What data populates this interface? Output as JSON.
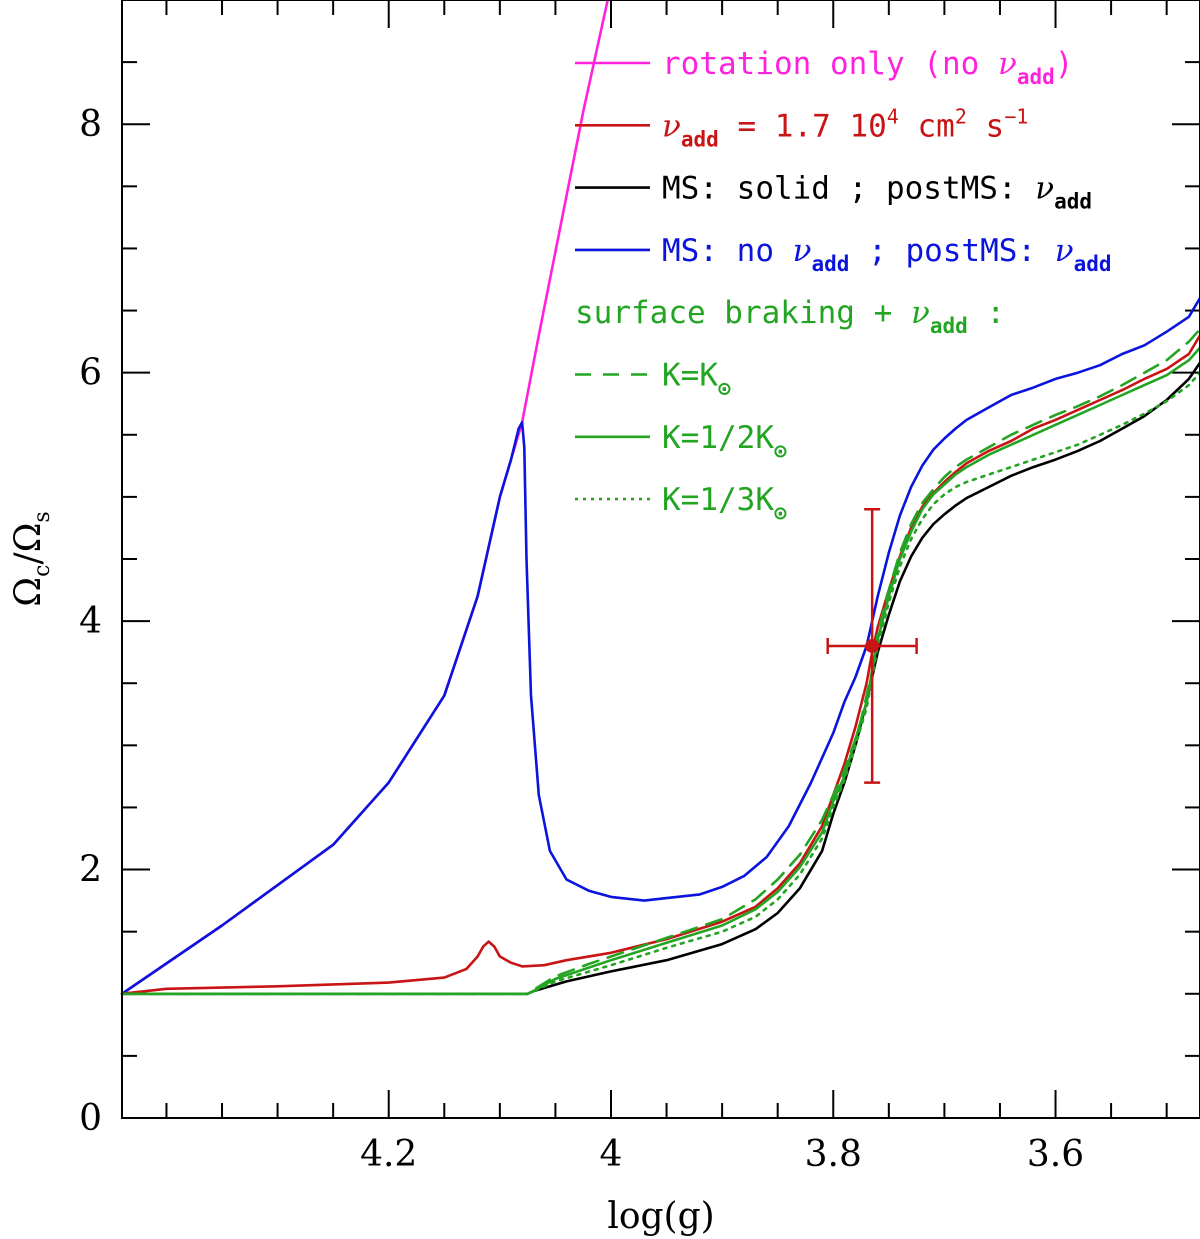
{
  "chart_data": {
    "type": "line",
    "xlabel": "log(g)",
    "ylabel_main": "Ω",
    "ylabel_sub_num": "c",
    "ylabel_slash": "/",
    "ylabel_sub_den": "s",
    "xlim": [
      4.44,
      3.47
    ],
    "ylim": [
      0,
      9
    ],
    "x_ticks": [
      4.2,
      4.0,
      3.8,
      3.6
    ],
    "x_tick_labels": [
      "4.2",
      "4",
      "3.8",
      "3.6"
    ],
    "x_minor_step": 0.05,
    "y_ticks": [
      0,
      2,
      4,
      6,
      8
    ],
    "y_tick_labels": [
      "0",
      "2",
      "4",
      "6",
      "8"
    ],
    "y_minor_step": 0.5,
    "colors": {
      "magenta": "#ff22dd",
      "red": "#c81414",
      "black": "#000000",
      "blue": "#0a14dc",
      "green": "#23a523"
    },
    "legend": [
      {
        "id": "rotation",
        "color": "magenta",
        "dash": "solid",
        "text_parts": [
          {
            "t": "rotation only (no "
          },
          {
            "t": "ν",
            "g": 1
          },
          {
            "t": "add",
            "sub": 1
          },
          {
            "t": ")"
          }
        ]
      },
      {
        "id": "nuadd",
        "color": "red",
        "dash": "solid",
        "text_parts": [
          {
            "t": "ν",
            "g": 1
          },
          {
            "t": "add",
            "sub": 1
          },
          {
            "t": " = 1.7 10"
          },
          {
            "t": "4",
            "sup": 1
          },
          {
            "t": " cm"
          },
          {
            "t": "2",
            "sup": 1
          },
          {
            "t": " s"
          },
          {
            "t": "−1",
            "sup": 1
          }
        ]
      },
      {
        "id": "ms-solid",
        "color": "black",
        "dash": "solid",
        "text_parts": [
          {
            "t": "MS: solid ; postMS: "
          },
          {
            "t": "ν",
            "g": 1
          },
          {
            "t": "add",
            "sub": 1
          }
        ]
      },
      {
        "id": "ms-no",
        "color": "blue",
        "dash": "solid",
        "text_parts": [
          {
            "t": "MS: no "
          },
          {
            "t": "ν",
            "g": 1
          },
          {
            "t": "add",
            "sub": 1
          },
          {
            "t": " ; postMS: "
          },
          {
            "t": "ν",
            "g": 1
          },
          {
            "t": "add",
            "sub": 1
          }
        ]
      },
      {
        "id": "braking-header",
        "color": "green",
        "dash": "none",
        "text_parts": [
          {
            "t": "surface braking + "
          },
          {
            "t": "ν",
            "g": 1
          },
          {
            "t": "add",
            "sub": 1
          },
          {
            "t": " :"
          }
        ]
      },
      {
        "id": "k1",
        "color": "green",
        "dash": "dashed",
        "text_parts": [
          {
            "t": "K=K"
          },
          {
            "t": "⊙",
            "sub": 1
          }
        ]
      },
      {
        "id": "k2",
        "color": "green",
        "dash": "solid",
        "text_parts": [
          {
            "t": "K=1/2K"
          },
          {
            "t": "⊙",
            "sub": 1
          }
        ]
      },
      {
        "id": "k3",
        "color": "green",
        "dash": "dotted",
        "text_parts": [
          {
            "t": "K=1/3K"
          },
          {
            "t": "⊙",
            "sub": 1
          }
        ]
      }
    ],
    "observation": {
      "x": 3.765,
      "y": 3.8,
      "xerr": 0.04,
      "y_low": 2.7,
      "y_high": 4.9,
      "color": "red"
    },
    "series": [
      {
        "name": "rotation only (no ν_add)",
        "color": "magenta",
        "dash": "solid",
        "x": [
          4.44,
          4.35,
          4.25,
          4.2,
          4.15,
          4.12,
          4.1,
          4.09,
          4.08,
          4.065,
          4.045,
          4.025,
          4.003
        ],
        "y": [
          1.0,
          1.55,
          2.2,
          2.7,
          3.4,
          4.2,
          5.0,
          5.3,
          5.6,
          6.3,
          7.2,
          8.1,
          9.0
        ]
      },
      {
        "name": "MS: no ν_add ; postMS: ν_add",
        "color": "blue",
        "dash": "solid",
        "x": [
          4.44,
          4.35,
          4.25,
          4.2,
          4.15,
          4.12,
          4.1,
          4.09,
          4.083,
          4.08,
          4.078,
          4.076,
          4.072,
          4.065,
          4.055,
          4.04,
          4.02,
          4.0,
          3.97,
          3.95,
          3.92,
          3.9,
          3.88,
          3.86,
          3.84,
          3.82,
          3.8,
          3.79,
          3.78,
          3.77,
          3.765,
          3.76,
          3.75,
          3.74,
          3.73,
          3.72,
          3.71,
          3.7,
          3.69,
          3.68,
          3.66,
          3.64,
          3.62,
          3.6,
          3.58,
          3.56,
          3.54,
          3.52,
          3.5,
          3.48,
          3.47
        ],
        "y": [
          1.0,
          1.55,
          2.2,
          2.7,
          3.4,
          4.2,
          5.0,
          5.3,
          5.55,
          5.6,
          5.4,
          4.5,
          3.4,
          2.6,
          2.15,
          1.92,
          1.83,
          1.78,
          1.75,
          1.77,
          1.8,
          1.86,
          1.95,
          2.1,
          2.35,
          2.7,
          3.1,
          3.35,
          3.55,
          3.8,
          4.0,
          4.2,
          4.55,
          4.85,
          5.08,
          5.25,
          5.38,
          5.47,
          5.55,
          5.62,
          5.72,
          5.82,
          5.88,
          5.95,
          6.0,
          6.06,
          6.15,
          6.22,
          6.33,
          6.45,
          6.6
        ]
      },
      {
        "name": "ν_add = 1.7 10^4 cm^2 s^-1",
        "color": "red",
        "dash": "solid",
        "x": [
          4.44,
          4.4,
          4.3,
          4.2,
          4.15,
          4.13,
          4.12,
          4.115,
          4.11,
          4.105,
          4.1,
          4.09,
          4.08,
          4.06,
          4.04,
          4.0,
          3.95,
          3.9,
          3.87,
          3.85,
          3.83,
          3.81,
          3.8,
          3.79,
          3.78,
          3.77,
          3.765,
          3.76,
          3.75,
          3.74,
          3.73,
          3.72,
          3.71,
          3.7,
          3.69,
          3.68,
          3.66,
          3.64,
          3.62,
          3.6,
          3.58,
          3.56,
          3.54,
          3.52,
          3.5,
          3.48,
          3.47
        ],
        "y": [
          1.0,
          1.04,
          1.06,
          1.09,
          1.13,
          1.2,
          1.3,
          1.38,
          1.42,
          1.38,
          1.3,
          1.25,
          1.22,
          1.23,
          1.27,
          1.33,
          1.44,
          1.58,
          1.7,
          1.85,
          2.05,
          2.35,
          2.6,
          2.85,
          3.15,
          3.5,
          3.75,
          3.95,
          4.25,
          4.52,
          4.75,
          4.92,
          5.03,
          5.12,
          5.2,
          5.27,
          5.37,
          5.45,
          5.55,
          5.62,
          5.7,
          5.78,
          5.86,
          5.95,
          6.03,
          6.15,
          6.3
        ]
      },
      {
        "name": "MS: solid ; postMS: ν_add",
        "color": "black",
        "dash": "solid",
        "x": [
          4.44,
          4.2,
          4.1,
          4.075,
          4.07,
          4.04,
          4.0,
          3.95,
          3.9,
          3.87,
          3.85,
          3.83,
          3.81,
          3.8,
          3.79,
          3.78,
          3.77,
          3.765,
          3.76,
          3.75,
          3.74,
          3.73,
          3.72,
          3.71,
          3.7,
          3.69,
          3.68,
          3.66,
          3.64,
          3.62,
          3.6,
          3.58,
          3.56,
          3.54,
          3.52,
          3.5,
          3.48,
          3.47
        ],
        "y": [
          1.0,
          1.0,
          1.0,
          1.0,
          1.02,
          1.1,
          1.18,
          1.27,
          1.4,
          1.52,
          1.65,
          1.85,
          2.15,
          2.45,
          2.7,
          3.0,
          3.35,
          3.55,
          3.75,
          4.05,
          4.32,
          4.52,
          4.67,
          4.78,
          4.86,
          4.93,
          4.99,
          5.08,
          5.17,
          5.24,
          5.3,
          5.37,
          5.45,
          5.55,
          5.65,
          5.78,
          5.95,
          6.08
        ]
      },
      {
        "name": "K=K⊙",
        "color": "green",
        "dash": "dashed",
        "x": [
          4.44,
          4.2,
          4.1,
          4.075,
          4.07,
          4.05,
          4.02,
          4.0,
          3.95,
          3.9,
          3.87,
          3.85,
          3.83,
          3.81,
          3.8,
          3.79,
          3.78,
          3.775,
          3.77,
          3.765,
          3.76,
          3.75,
          3.74,
          3.73,
          3.72,
          3.71,
          3.7,
          3.69,
          3.68,
          3.66,
          3.64,
          3.62,
          3.6,
          3.58,
          3.56,
          3.54,
          3.52,
          3.5,
          3.48,
          3.47
        ],
        "y": [
          1.0,
          1.0,
          1.0,
          1.0,
          1.03,
          1.14,
          1.24,
          1.3,
          1.45,
          1.6,
          1.76,
          1.92,
          2.12,
          2.4,
          2.6,
          2.8,
          3.05,
          3.2,
          3.4,
          3.6,
          3.9,
          4.25,
          4.55,
          4.78,
          4.95,
          5.06,
          5.16,
          5.24,
          5.3,
          5.4,
          5.5,
          5.58,
          5.66,
          5.73,
          5.81,
          5.9,
          6.0,
          6.1,
          6.25,
          6.35
        ]
      },
      {
        "name": "K=1/2K⊙",
        "color": "green",
        "dash": "solid",
        "x": [
          4.44,
          4.2,
          4.1,
          4.075,
          4.07,
          4.05,
          4.0,
          3.95,
          3.9,
          3.87,
          3.85,
          3.83,
          3.81,
          3.8,
          3.79,
          3.78,
          3.77,
          3.765,
          3.76,
          3.75,
          3.74,
          3.73,
          3.72,
          3.71,
          3.7,
          3.69,
          3.68,
          3.66,
          3.64,
          3.62,
          3.6,
          3.58,
          3.56,
          3.54,
          3.52,
          3.5,
          3.48,
          3.47
        ],
        "y": [
          1.0,
          1.0,
          1.0,
          1.0,
          1.02,
          1.12,
          1.27,
          1.41,
          1.55,
          1.68,
          1.82,
          2.02,
          2.3,
          2.55,
          2.75,
          3.05,
          3.35,
          3.6,
          3.85,
          4.2,
          4.5,
          4.72,
          4.9,
          5.02,
          5.1,
          5.18,
          5.24,
          5.34,
          5.42,
          5.5,
          5.58,
          5.66,
          5.74,
          5.82,
          5.9,
          5.98,
          6.1,
          6.2
        ]
      },
      {
        "name": "K=1/3K⊙",
        "color": "green",
        "dash": "dotted",
        "x": [
          4.44,
          4.2,
          4.1,
          4.075,
          4.07,
          4.05,
          4.0,
          3.95,
          3.9,
          3.87,
          3.85,
          3.83,
          3.81,
          3.8,
          3.79,
          3.78,
          3.77,
          3.765,
          3.76,
          3.75,
          3.74,
          3.73,
          3.72,
          3.71,
          3.7,
          3.69,
          3.68,
          3.66,
          3.64,
          3.62,
          3.6,
          3.58,
          3.56,
          3.54,
          3.52,
          3.5,
          3.48,
          3.47
        ],
        "y": [
          1.0,
          1.0,
          1.0,
          1.0,
          1.02,
          1.1,
          1.23,
          1.37,
          1.5,
          1.62,
          1.76,
          1.96,
          2.25,
          2.5,
          2.72,
          3.0,
          3.3,
          3.55,
          3.8,
          4.15,
          4.44,
          4.66,
          4.82,
          4.94,
          5.02,
          5.08,
          5.12,
          5.18,
          5.24,
          5.3,
          5.36,
          5.42,
          5.5,
          5.58,
          5.67,
          5.77,
          5.9,
          6.0
        ]
      }
    ]
  }
}
